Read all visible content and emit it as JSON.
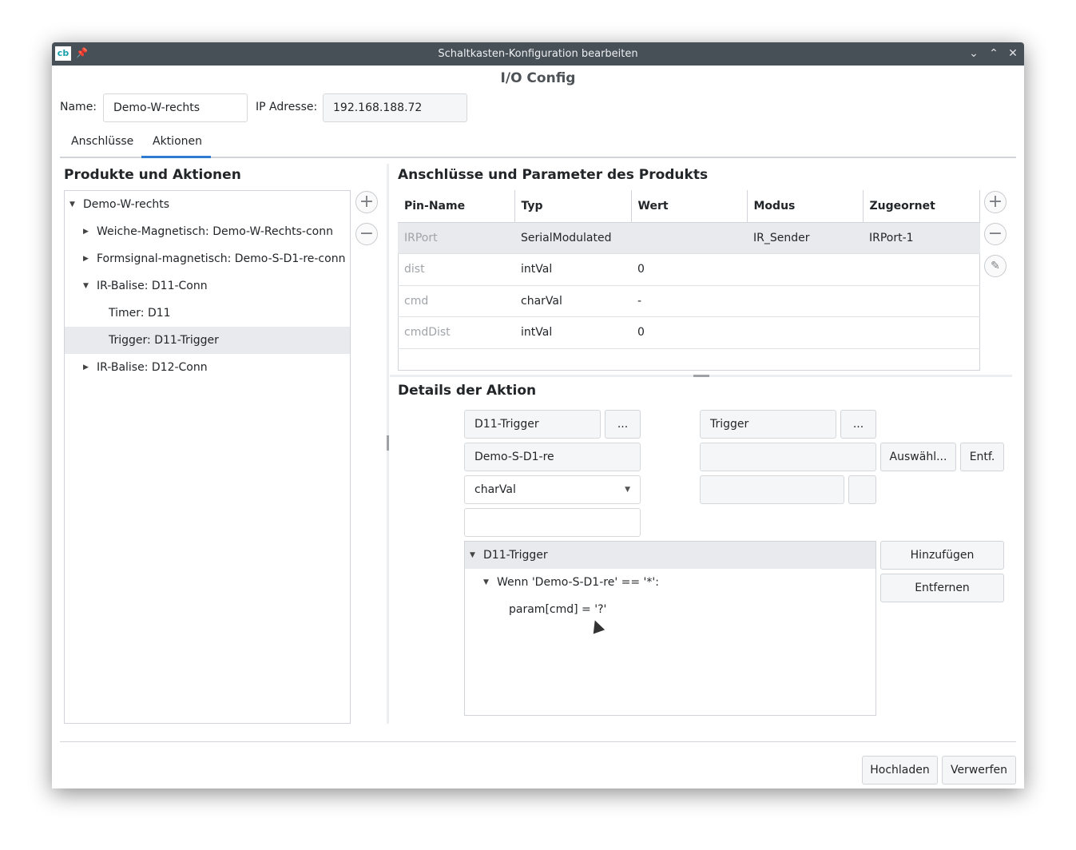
{
  "window": {
    "title": "Schaltkasten-Konfiguration bearbeiten",
    "logo": "cb",
    "pin_icon": "pin-icon",
    "minimize_icon": "chevron-down-icon",
    "maximize_icon": "chevron-up-icon",
    "close_icon": "close-icon"
  },
  "heading": "I/O Config",
  "form": {
    "name_label": "Name:",
    "name_value": "Demo-W-rechts",
    "ip_label": "IP Adresse:",
    "ip_value": "192.168.188.72"
  },
  "tabs": [
    {
      "label": "Anschlüsse",
      "active": false
    },
    {
      "label": "Aktionen",
      "active": true
    }
  ],
  "left": {
    "title": "Produkte und Aktionen",
    "tree": [
      {
        "label": "Demo-W-rechts",
        "expanded": true,
        "level": 0
      },
      {
        "label": "Weiche-Magnetisch: Demo-W-Rechts-conn",
        "expanded": false,
        "level": 1
      },
      {
        "label": "Formsignal-magnetisch: Demo-S-D1-re-conn",
        "expanded": false,
        "level": 1
      },
      {
        "label": "IR-Balise: D11-Conn",
        "expanded": true,
        "level": 1
      },
      {
        "label": "Timer: D11",
        "level": 2
      },
      {
        "label": "Trigger: D11-Trigger",
        "level": 2,
        "selected": true
      },
      {
        "label": "IR-Balise: D12-Conn",
        "expanded": false,
        "level": 1
      }
    ]
  },
  "right": {
    "title": "Anschlüsse und Parameter des Produkts",
    "columns": [
      "Pin-Name",
      "Typ",
      "Wert",
      "Modus",
      "Zugeornet"
    ],
    "rows": [
      [
        "IRPort",
        "SerialModulated",
        "",
        "IR_Sender",
        "IRPort-1"
      ],
      [
        "dist",
        "intVal",
        "0",
        "",
        ""
      ],
      [
        "cmd",
        "charVal",
        "-",
        "",
        ""
      ],
      [
        "cmdDist",
        "intVal",
        "0",
        "",
        ""
      ]
    ]
  },
  "details": {
    "title": "Details der Aktion",
    "name": "D11-Trigger",
    "dots": "...",
    "type": "Trigger",
    "source": "Demo-S-D1-re",
    "select_label": "Auswähl...",
    "remove_short": "Entf.",
    "value_type": "charVal",
    "value": "",
    "tree": {
      "root": "D11-Trigger",
      "condition": "Wenn 'Demo-S-D1-re' == '*':",
      "action": "param[cmd] = '?'"
    },
    "add": "Hinzufügen",
    "remove": "Entfernen"
  },
  "footer": {
    "upload": "Hochladen",
    "discard": "Verwerfen"
  },
  "colors": {
    "titlebar": "#474f57",
    "accent": "#2f7ad1",
    "selection": "#e8eaed"
  }
}
